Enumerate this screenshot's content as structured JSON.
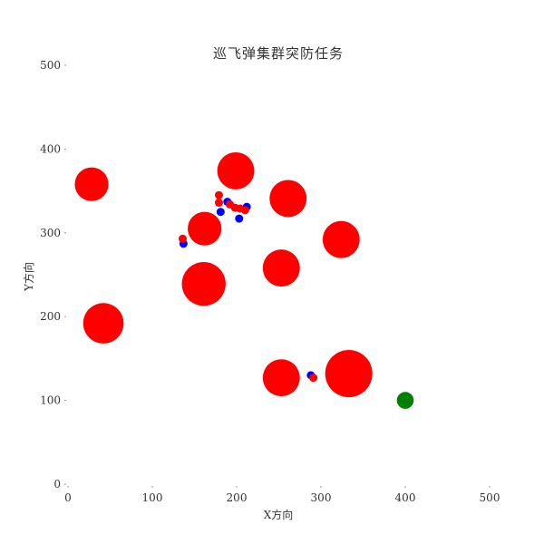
{
  "chart_data": {
    "type": "scatter",
    "title": "巡飞弹集群突防任务",
    "xlabel": "X方向",
    "ylabel": "Y方向",
    "xlim": [
      0,
      500
    ],
    "ylim": [
      0,
      500
    ],
    "x_ticks": [
      "0",
      "100",
      "200",
      "300",
      "400",
      "500"
    ],
    "y_ticks": [
      "0",
      "100",
      "200",
      "300",
      "400",
      "500"
    ],
    "grid": false,
    "series": [
      {
        "kind": "threat",
        "color": "#ff0000",
        "points": [
          {
            "x": 28,
            "y": 358,
            "r": 20
          },
          {
            "x": 199,
            "y": 374,
            "r": 22
          },
          {
            "x": 261,
            "y": 341,
            "r": 22
          },
          {
            "x": 162,
            "y": 305,
            "r": 20
          },
          {
            "x": 324,
            "y": 292,
            "r": 22
          },
          {
            "x": 253,
            "y": 258,
            "r": 22
          },
          {
            "x": 161,
            "y": 239,
            "r": 26
          },
          {
            "x": 42,
            "y": 192,
            "r": 24
          },
          {
            "x": 253,
            "y": 127,
            "r": 22
          },
          {
            "x": 333,
            "y": 132,
            "r": 28
          }
        ]
      },
      {
        "kind": "target",
        "color": "#008000",
        "points": [
          {
            "x": 400,
            "y": 100,
            "r": 10
          }
        ]
      },
      {
        "kind": "blue-agent",
        "color": "#0000ff",
        "points": [
          {
            "x": 137,
            "y": 287
          },
          {
            "x": 181,
            "y": 325
          },
          {
            "x": 189,
            "y": 337
          },
          {
            "x": 203,
            "y": 317
          },
          {
            "x": 212,
            "y": 331
          },
          {
            "x": 288,
            "y": 130
          }
        ]
      },
      {
        "kind": "red-agent",
        "color": "#ff0000",
        "points": [
          {
            "x": 136,
            "y": 293
          },
          {
            "x": 179,
            "y": 345
          },
          {
            "x": 179,
            "y": 336
          },
          {
            "x": 192,
            "y": 334
          },
          {
            "x": 198,
            "y": 330
          },
          {
            "x": 204,
            "y": 329
          },
          {
            "x": 210,
            "y": 327
          },
          {
            "x": 291,
            "y": 127
          }
        ]
      }
    ]
  }
}
